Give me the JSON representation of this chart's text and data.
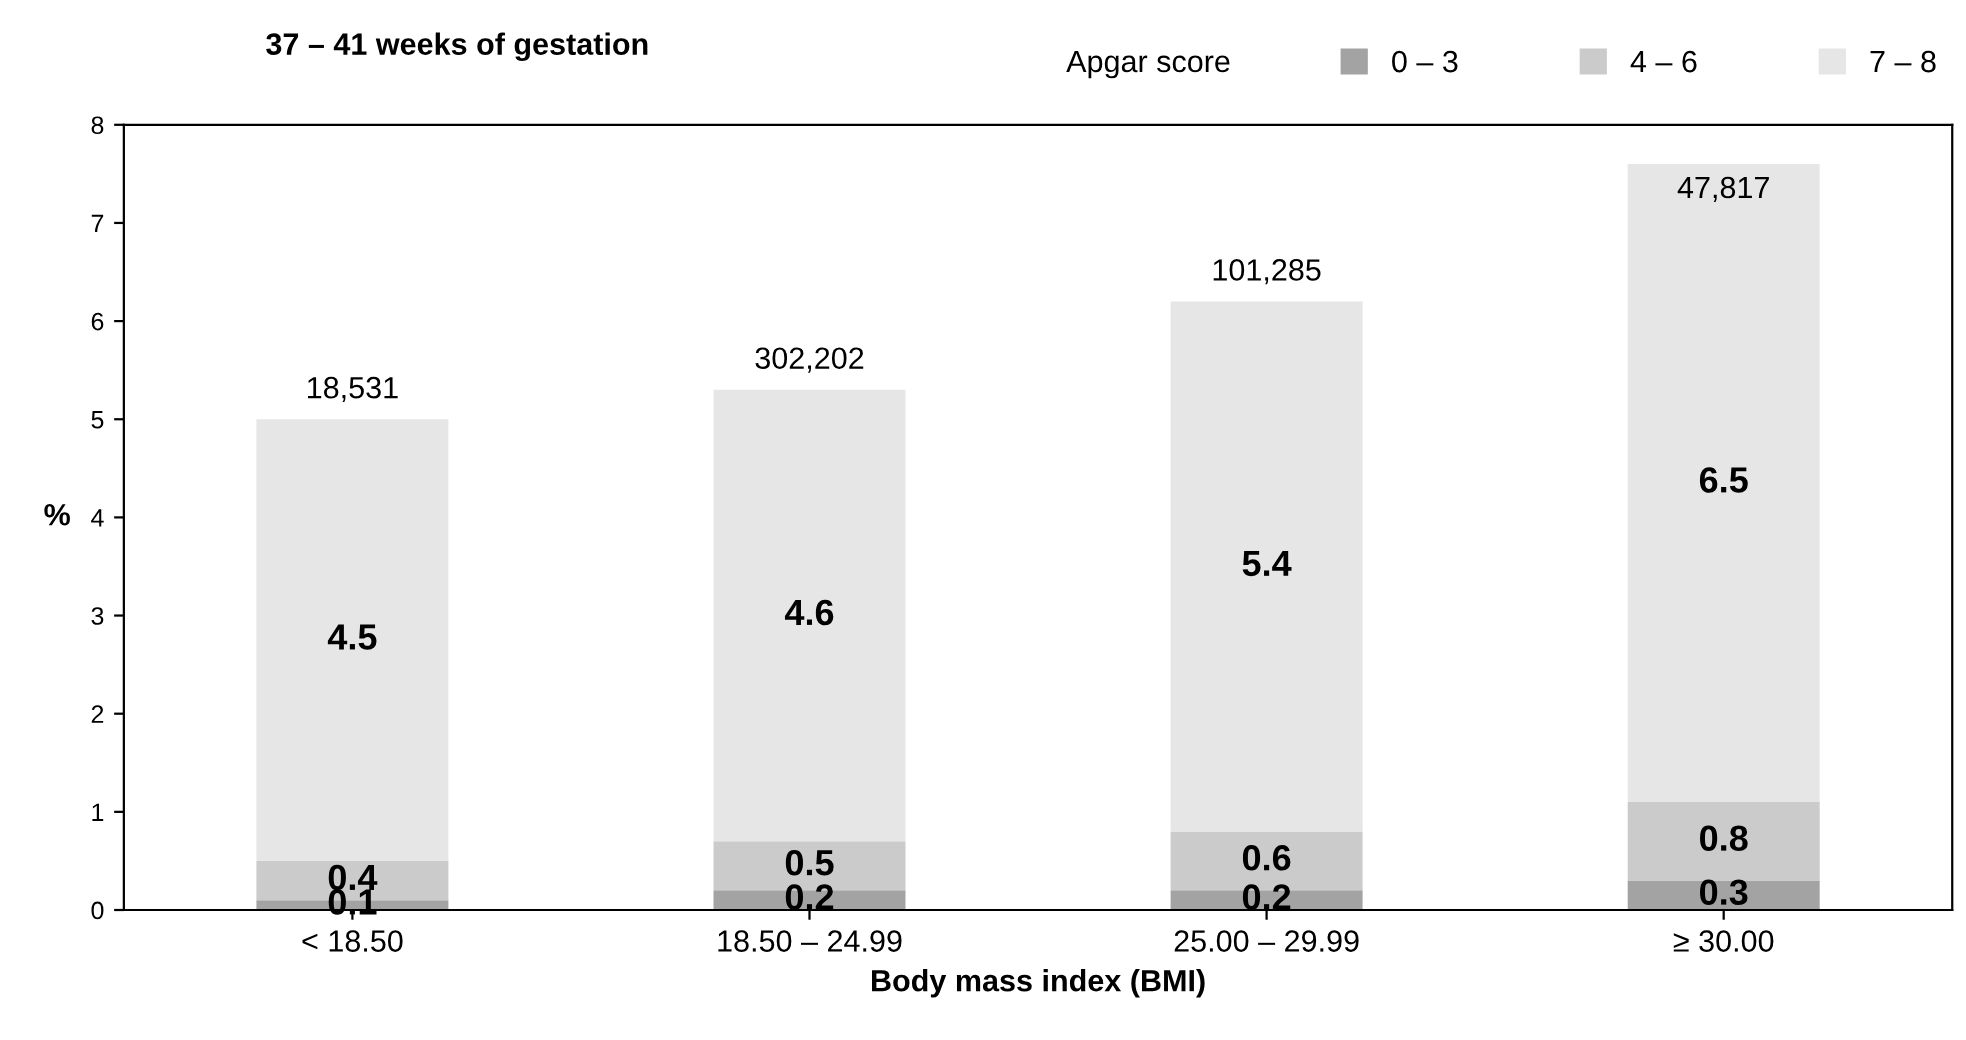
{
  "chart_data": {
    "type": "bar",
    "title": "37 – 41 weeks of gestation",
    "legend_title": "Apgar score",
    "xlabel": "Body mass index (BMI)",
    "ylabel": "%",
    "categories": [
      "< 18.50",
      "18.50 – 24.99",
      "25.00 – 29.99",
      "≥ 30.00"
    ],
    "series": [
      {
        "name": "0 – 3",
        "color": "#a3a3a3",
        "values": [
          0.1,
          0.2,
          0.2,
          0.3
        ]
      },
      {
        "name": "4 – 6",
        "color": "#cbcbcb",
        "values": [
          0.4,
          0.5,
          0.6,
          0.8
        ]
      },
      {
        "name": "7 – 8",
        "color": "#e6e6e6",
        "values": [
          4.5,
          4.6,
          5.4,
          6.5
        ]
      }
    ],
    "stacked": true,
    "data_labels": true,
    "legend": "top",
    "grid": false,
    "ylim": [
      0,
      8
    ],
    "yticks": [
      0,
      1,
      2,
      3,
      4,
      5,
      6,
      7,
      8
    ],
    "annotations": [
      {
        "text": "18,531",
        "x": "< 18.50",
        "y": 5.0
      },
      {
        "text": "302,202",
        "x": "18.50 – 24.99",
        "y": 5.3
      },
      {
        "text": "101,285",
        "x": "25.00 – 29.99",
        "y": 6.2
      },
      {
        "text": "47,817",
        "x": "≥ 30.00",
        "y": 7.6
      }
    ]
  }
}
